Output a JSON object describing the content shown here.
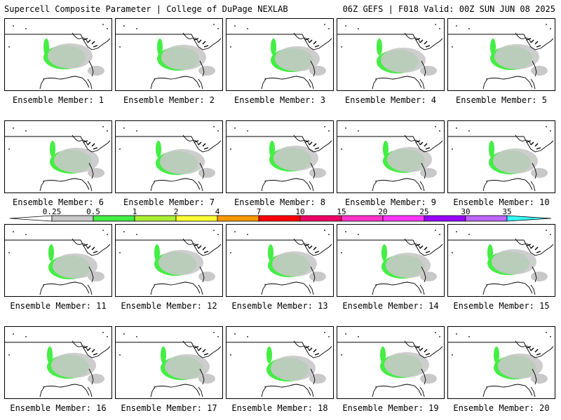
{
  "header": {
    "left_title": "Supercell Composite Parameter | College of DuPage NEXLAB",
    "right_title": "06Z GEFS | F018 Valid: 00Z SUN JUN 08 2025"
  },
  "panels": [
    {
      "label": "Ensemble Member: 1"
    },
    {
      "label": "Ensemble Member: 2"
    },
    {
      "label": "Ensemble Member: 3"
    },
    {
      "label": "Ensemble Member: 4"
    },
    {
      "label": "Ensemble Member: 5"
    },
    {
      "label": "Ensemble Member: 6"
    },
    {
      "label": "Ensemble Member: 7"
    },
    {
      "label": "Ensemble Member: 8"
    },
    {
      "label": "Ensemble Member: 9"
    },
    {
      "label": "Ensemble Member: 10"
    },
    {
      "label": "Ensemble Member: 11"
    },
    {
      "label": "Ensemble Member: 12"
    },
    {
      "label": "Ensemble Member: 13"
    },
    {
      "label": "Ensemble Member: 14"
    },
    {
      "label": "Ensemble Member: 15"
    },
    {
      "label": "Ensemble Member: 16"
    },
    {
      "label": "Ensemble Member: 17"
    },
    {
      "label": "Ensemble Member: 18"
    },
    {
      "label": "Ensemble Member: 19"
    },
    {
      "label": "Ensemble Member: 20"
    }
  ],
  "colorbar": {
    "tick_labels": [
      "0.25",
      "0.5",
      "1",
      "2",
      "4",
      "7",
      "10",
      "15",
      "20",
      "25",
      "30",
      "35"
    ],
    "colors": [
      "#c8c8c8",
      "#44ee44",
      "#aaee33",
      "#ffff33",
      "#ff9900",
      "#ff0000",
      "#ee0066",
      "#ff33cc",
      "#ff33ff",
      "#9900ff",
      "#bb66ff",
      "#33ffff"
    ],
    "field_colors": {
      "trace": "#c8c8c8",
      "low": "#44ee44",
      "mid": "#aaee33",
      "yellow": "#ffff33",
      "orange": "#ff9900",
      "red": "#ff0000"
    }
  }
}
